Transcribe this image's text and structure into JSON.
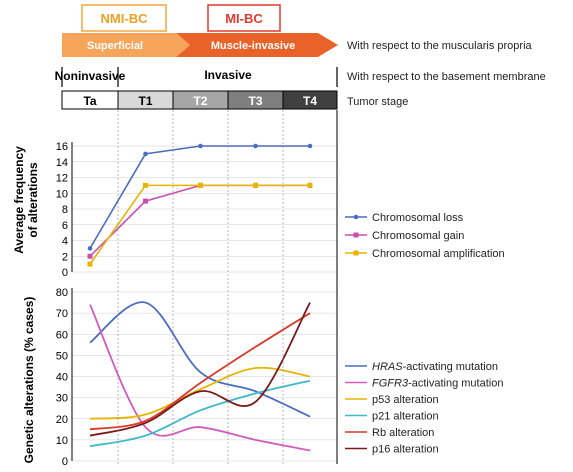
{
  "header": {
    "nmi_label": "NMI-BC",
    "mi_label": "MI-BC",
    "superficial_label": "Superficial",
    "muscle_invasive_label": "Muscle-invasive",
    "muscularis_note": "With respect to the muscularis propria",
    "noninvasive_label": "Noninvasive",
    "invasive_label": "Invasive",
    "basement_note": "With respect to the basement membrane",
    "tumor_stage_note": "Tumor stage",
    "stages": [
      "Ta",
      "T1",
      "T2",
      "T3",
      "T4"
    ],
    "colors": {
      "nmi_border": "#f2a93b",
      "nmi_text": "#f0a020",
      "mi_border": "#e03a2f",
      "mi_text": "#e03a2f",
      "arrow_light": "#f5a55a",
      "arrow_dark": "#e8622a",
      "stage_fills": [
        "#ffffff",
        "#d9d9d9",
        "#a6a6a6",
        "#7f7f7f",
        "#404040"
      ],
      "stage_text": [
        "#000000",
        "#000000",
        "#ffffff",
        "#ffffff",
        "#ffffff"
      ]
    }
  },
  "chart_data": [
    {
      "type": "line",
      "ylabel": "Average frequency of alterations",
      "ylim": [
        0,
        16
      ],
      "yticks": [
        0,
        2,
        4,
        6,
        8,
        10,
        12,
        14,
        16
      ],
      "categories": [
        "Ta",
        "T1",
        "T2",
        "T3",
        "T4"
      ],
      "grid": true,
      "legend": "right",
      "series": [
        {
          "name": "Chromosomal loss",
          "color": "#4a6cc1",
          "values": [
            3,
            15,
            16,
            16,
            16
          ]
        },
        {
          "name": "Chromosomal gain",
          "color": "#c84fb0",
          "values": [
            2,
            9,
            11,
            11,
            11
          ]
        },
        {
          "name": "Chromosomal amplification",
          "color": "#e8b400",
          "values": [
            1,
            11,
            11,
            11,
            11
          ]
        }
      ]
    },
    {
      "type": "line",
      "ylabel": "Genetic alterations (% cases)",
      "ylim": [
        0,
        80
      ],
      "yticks": [
        0,
        10,
        20,
        30,
        40,
        50,
        60,
        70,
        80
      ],
      "categories": [
        "Ta",
        "T1",
        "T2",
        "T3",
        "T4"
      ],
      "grid": true,
      "legend": "right",
      "series": [
        {
          "name": "HRAS-activating mutation",
          "name_italic": "HRAS",
          "name_rest": "-activating mutation",
          "color": "#4a6cc1",
          "values": [
            56,
            75,
            42,
            33,
            21
          ]
        },
        {
          "name": "FGFR3-activating mutation",
          "name_italic": "FGFR3",
          "name_rest": "-activating mutation",
          "color": "#d05cc0",
          "values": [
            74,
            16,
            16,
            10,
            5
          ]
        },
        {
          "name": "p53 alteration",
          "color": "#e8b400",
          "values": [
            20,
            22,
            34,
            44,
            40
          ]
        },
        {
          "name": "p21 alteration",
          "color": "#3fb8c8",
          "values": [
            7,
            12,
            24,
            32,
            38
          ]
        },
        {
          "name": "Rb alteration",
          "color": "#d93a2b",
          "values": [
            15,
            19,
            37,
            54,
            70
          ]
        },
        {
          "name": "p16 alteration",
          "color": "#7a1a1a",
          "values": [
            12,
            18,
            33,
            28,
            75
          ]
        }
      ]
    }
  ]
}
